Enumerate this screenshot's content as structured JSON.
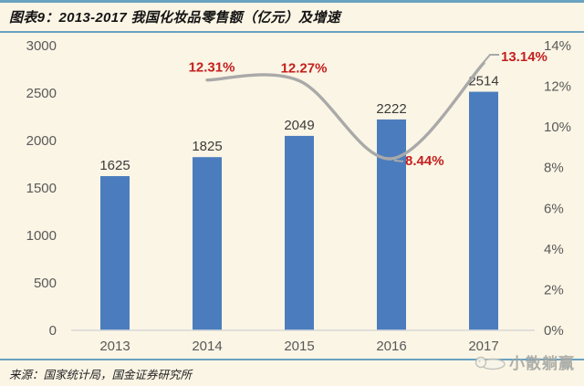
{
  "header": {
    "title": "图表9：2013-2017 我国化妆品零售额（亿元）及增速"
  },
  "footer": {
    "source": "来源：国家统计局，国金证券研究所",
    "watermark": "小散躺赢"
  },
  "colors": {
    "background": "#fbf5e5",
    "accent_rule": "#69a2c0",
    "bar": "#4b7dbe",
    "growth_line": "#a9a9a9",
    "growth_label": "#c4201f",
    "value_label": "#3b3b3b",
    "axis_label": "#595959",
    "axis_line": "#d8d8d8",
    "watermark": "#a5a8a3"
  },
  "chart_data": {
    "type": "bar",
    "title": "2013-2017 我国化妆品零售额（亿元）及增速",
    "categories": [
      "2013",
      "2014",
      "2015",
      "2016",
      "2017"
    ],
    "series": [
      {
        "name": "化妆品零售额（亿元）",
        "type": "bar",
        "values": [
          1625,
          1825,
          2049,
          2222,
          2514
        ],
        "labels": [
          "1625",
          "1825",
          "2049",
          "2222",
          "2514"
        ]
      },
      {
        "name": "增速",
        "type": "line",
        "values": [
          null,
          12.31,
          12.27,
          8.44,
          13.14
        ],
        "labels": [
          null,
          "12.31%",
          "12.27%",
          "8.44%",
          "13.14%"
        ]
      }
    ],
    "left_axis": {
      "min": 0,
      "max": 3000,
      "step": 500,
      "ticks": [
        "0",
        "500",
        "1000",
        "1500",
        "2000",
        "2500",
        "3000"
      ]
    },
    "right_axis": {
      "min": 0,
      "max": 14,
      "step": 2,
      "ticks": [
        "0%",
        "2%",
        "4%",
        "6%",
        "8%",
        "10%",
        "12%",
        "14%"
      ]
    },
    "grid": false,
    "legend": "none"
  }
}
